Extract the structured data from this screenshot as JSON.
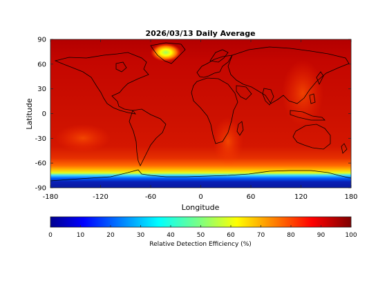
{
  "title": "2026/03/13 Daily Average",
  "map": {
    "xlabel": "Longitude",
    "ylabel": "Latitude",
    "xlim": [
      -180,
      180
    ],
    "ylim": [
      -90,
      90
    ],
    "xticks": [
      -180,
      -120,
      -60,
      0,
      60,
      120,
      180
    ],
    "yticks": [
      90,
      60,
      30,
      0,
      -30,
      -60,
      -90
    ]
  },
  "colorbar": {
    "label": "Relative Detection Efficiency (%)",
    "range": [
      0,
      100
    ],
    "ticks": [
      0,
      10,
      20,
      30,
      40,
      50,
      60,
      70,
      80,
      90,
      100
    ],
    "colormap": "jet"
  },
  "colors": {
    "field_dominant": "#c80c00",
    "field_high": "#a00000",
    "southern_band": "#f0a000",
    "antarctic_low": "#0a1fb5",
    "greenland_hotspot": "#7dff7a"
  }
}
